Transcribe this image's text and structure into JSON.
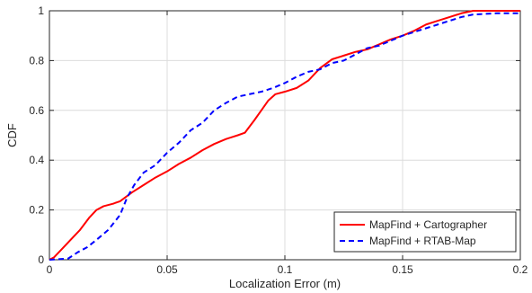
{
  "chart_data": {
    "type": "line",
    "xlabel": "Localization Error (m)",
    "ylabel": "CDF",
    "xlim": [
      0,
      0.2
    ],
    "ylim": [
      0,
      1
    ],
    "grid": true,
    "legend_position": "bottom-right",
    "x_ticks": [
      "0",
      "0.05",
      "0.1",
      "0.15",
      "0.2"
    ],
    "y_ticks": [
      "0",
      "0.2",
      "0.4",
      "0.6",
      "0.8",
      "1"
    ],
    "series": [
      {
        "name": "MapFind + Cartographer",
        "color": "#ff0000",
        "line_style": "solid",
        "points": [
          [
            0,
            0
          ],
          [
            0.002,
            0.01
          ],
          [
            0.005,
            0.04
          ],
          [
            0.01,
            0.09
          ],
          [
            0.013,
            0.12
          ],
          [
            0.017,
            0.17
          ],
          [
            0.02,
            0.2
          ],
          [
            0.023,
            0.215
          ],
          [
            0.027,
            0.225
          ],
          [
            0.03,
            0.235
          ],
          [
            0.035,
            0.27
          ],
          [
            0.04,
            0.3
          ],
          [
            0.045,
            0.33
          ],
          [
            0.05,
            0.355
          ],
          [
            0.055,
            0.385
          ],
          [
            0.06,
            0.41
          ],
          [
            0.065,
            0.44
          ],
          [
            0.07,
            0.465
          ],
          [
            0.075,
            0.485
          ],
          [
            0.08,
            0.5
          ],
          [
            0.083,
            0.51
          ],
          [
            0.087,
            0.56
          ],
          [
            0.09,
            0.6
          ],
          [
            0.093,
            0.64
          ],
          [
            0.096,
            0.665
          ],
          [
            0.1,
            0.675
          ],
          [
            0.105,
            0.69
          ],
          [
            0.11,
            0.72
          ],
          [
            0.115,
            0.77
          ],
          [
            0.12,
            0.805
          ],
          [
            0.125,
            0.82
          ],
          [
            0.13,
            0.835
          ],
          [
            0.135,
            0.845
          ],
          [
            0.14,
            0.865
          ],
          [
            0.145,
            0.885
          ],
          [
            0.15,
            0.9
          ],
          [
            0.155,
            0.92
          ],
          [
            0.16,
            0.945
          ],
          [
            0.165,
            0.96
          ],
          [
            0.17,
            0.975
          ],
          [
            0.175,
            0.99
          ],
          [
            0.18,
            1.0
          ],
          [
            0.2,
            1.0
          ]
        ]
      },
      {
        "name": "MapFind + RTAB-Map",
        "color": "#0000ff",
        "line_style": "dashed",
        "points": [
          [
            0,
            0
          ],
          [
            0.008,
            0.005
          ],
          [
            0.012,
            0.03
          ],
          [
            0.016,
            0.05
          ],
          [
            0.02,
            0.08
          ],
          [
            0.025,
            0.12
          ],
          [
            0.03,
            0.18
          ],
          [
            0.033,
            0.25
          ],
          [
            0.036,
            0.3
          ],
          [
            0.04,
            0.35
          ],
          [
            0.045,
            0.38
          ],
          [
            0.05,
            0.43
          ],
          [
            0.055,
            0.47
          ],
          [
            0.06,
            0.52
          ],
          [
            0.065,
            0.55
          ],
          [
            0.07,
            0.6
          ],
          [
            0.075,
            0.63
          ],
          [
            0.08,
            0.655
          ],
          [
            0.085,
            0.665
          ],
          [
            0.09,
            0.675
          ],
          [
            0.095,
            0.69
          ],
          [
            0.1,
            0.71
          ],
          [
            0.105,
            0.735
          ],
          [
            0.11,
            0.755
          ],
          [
            0.115,
            0.765
          ],
          [
            0.12,
            0.79
          ],
          [
            0.125,
            0.8
          ],
          [
            0.13,
            0.825
          ],
          [
            0.135,
            0.85
          ],
          [
            0.14,
            0.86
          ],
          [
            0.145,
            0.88
          ],
          [
            0.15,
            0.9
          ],
          [
            0.155,
            0.915
          ],
          [
            0.16,
            0.93
          ],
          [
            0.165,
            0.945
          ],
          [
            0.17,
            0.96
          ],
          [
            0.175,
            0.975
          ],
          [
            0.18,
            0.985
          ],
          [
            0.19,
            0.99
          ],
          [
            0.2,
            0.99
          ]
        ]
      }
    ]
  }
}
